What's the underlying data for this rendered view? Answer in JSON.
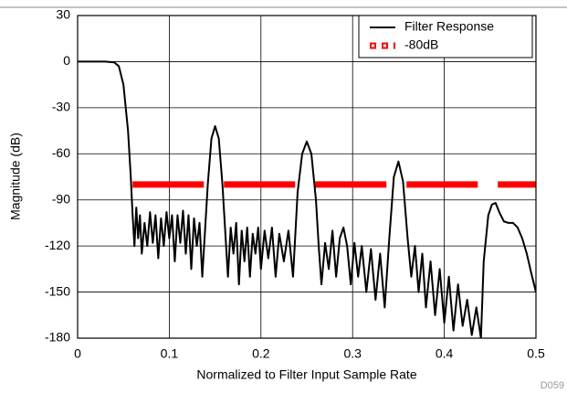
{
  "chart_data": {
    "type": "line",
    "xlabel": "Normalized to Filter Input Sample Rate",
    "ylabel": "Magnitude (dB)",
    "annotation": "D059",
    "xlim": [
      0,
      0.5
    ],
    "xticks": [
      0,
      0.1,
      0.2,
      0.3,
      0.4,
      0.5
    ],
    "ylim": [
      -180,
      30
    ],
    "yticks": [
      30,
      0,
      -30,
      -60,
      -90,
      -120,
      -150,
      -180
    ],
    "grid": true,
    "legend": "upper right",
    "series": [
      {
        "name": "Filter Response",
        "color": "#000000",
        "style": "solid",
        "x": [
          0,
          0.03,
          0.04,
          0.045,
          0.05,
          0.055,
          0.058,
          0.06,
          0.062,
          0.064,
          0.066,
          0.068,
          0.07,
          0.073,
          0.076,
          0.079,
          0.082,
          0.085,
          0.088,
          0.091,
          0.094,
          0.097,
          0.1,
          0.103,
          0.106,
          0.109,
          0.112,
          0.115,
          0.118,
          0.121,
          0.124,
          0.127,
          0.13,
          0.133,
          0.136,
          0.139,
          0.142,
          0.146,
          0.15,
          0.154,
          0.158,
          0.161,
          0.164,
          0.167,
          0.17,
          0.173,
          0.176,
          0.179,
          0.182,
          0.185,
          0.188,
          0.191,
          0.194,
          0.197,
          0.2,
          0.204,
          0.208,
          0.212,
          0.216,
          0.22,
          0.225,
          0.23,
          0.235,
          0.24,
          0.245,
          0.25,
          0.255,
          0.26,
          0.263,
          0.266,
          0.27,
          0.274,
          0.278,
          0.282,
          0.286,
          0.29,
          0.294,
          0.298,
          0.302,
          0.306,
          0.31,
          0.315,
          0.32,
          0.325,
          0.33,
          0.335,
          0.34,
          0.345,
          0.35,
          0.355,
          0.36,
          0.364,
          0.368,
          0.372,
          0.376,
          0.38,
          0.385,
          0.39,
          0.395,
          0.4,
          0.405,
          0.41,
          0.415,
          0.42,
          0.425,
          0.43,
          0.435,
          0.44,
          0.443,
          0.448,
          0.452,
          0.456,
          0.46,
          0.465,
          0.47,
          0.475,
          0.48,
          0.485,
          0.49,
          0.495,
          0.5
        ],
        "values": [
          0,
          0,
          -0.5,
          -3,
          -15,
          -45,
          -75,
          -100,
          -120,
          -95,
          -115,
          -100,
          -125,
          -105,
          -120,
          -98,
          -118,
          -100,
          -128,
          -102,
          -120,
          -98,
          -115,
          -100,
          -130,
          -100,
          -118,
          -97,
          -125,
          -100,
          -135,
          -102,
          -120,
          -105,
          -140,
          -110,
          -80,
          -50,
          -42,
          -50,
          -80,
          -110,
          -140,
          -108,
          -125,
          -105,
          -145,
          -110,
          -130,
          -108,
          -140,
          -112,
          -125,
          -108,
          -135,
          -110,
          -128,
          -108,
          -140,
          -112,
          -130,
          -110,
          -140,
          -85,
          -60,
          -52,
          -60,
          -90,
          -120,
          -145,
          -118,
          -135,
          -110,
          -140,
          -115,
          -108,
          -120,
          -145,
          -118,
          -140,
          -120,
          -150,
          -122,
          -155,
          -125,
          -160,
          -115,
          -75,
          -65,
          -78,
          -115,
          -140,
          -120,
          -150,
          -125,
          -160,
          -130,
          -165,
          -135,
          -170,
          -140,
          -175,
          -145,
          -172,
          -155,
          -178,
          -160,
          -180,
          -130,
          -100,
          -93,
          -92,
          -98,
          -104,
          -105,
          -105,
          -108,
          -115,
          -125,
          -138,
          -150
        ]
      },
      {
        "name": "-80dB",
        "color": "#ff0000",
        "style": "dotted",
        "x": [
          0.06,
          0.5
        ],
        "values": [
          -80,
          -80
        ]
      }
    ]
  }
}
